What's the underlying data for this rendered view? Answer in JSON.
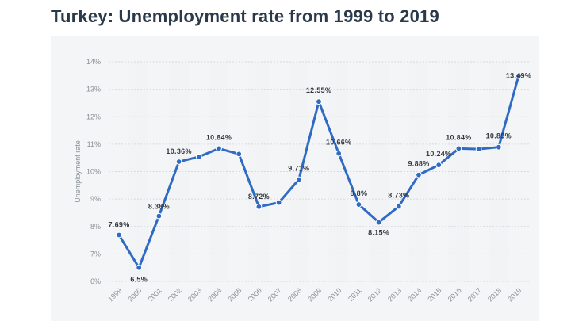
{
  "title": "Turkey: Unemployment rate from 1999 to 2019",
  "chart_data": {
    "type": "line",
    "title": "Turkey: Unemployment rate from 1999 to 2019",
    "xlabel": "",
    "ylabel": "Unemployment rate",
    "ylim": [
      6,
      14
    ],
    "yticks": [
      "6%",
      "7%",
      "8%",
      "9%",
      "10%",
      "11%",
      "12%",
      "13%",
      "14%"
    ],
    "categories": [
      "1999",
      "2000",
      "2001",
      "2002",
      "2003",
      "2004",
      "2005",
      "2006",
      "2007",
      "2008",
      "2009",
      "2010",
      "2011",
      "2012",
      "2013",
      "2014",
      "2015",
      "2016",
      "2017",
      "2018",
      "2019"
    ],
    "values": [
      7.69,
      6.5,
      8.38,
      10.36,
      10.54,
      10.84,
      10.64,
      8.72,
      8.87,
      9.71,
      12.55,
      10.66,
      8.8,
      8.15,
      8.73,
      9.88,
      10.24,
      10.84,
      10.82,
      10.89,
      13.49
    ],
    "labels": [
      "7.69%",
      "6.5%",
      "8.38%",
      "10.36%",
      "",
      "10.84%",
      "",
      "8.72%",
      "",
      "9.71%",
      "12.55%",
      "10.66%",
      "8.8%",
      "8.15%",
      "8.73%",
      "9.88%",
      "10.24%",
      "10.84%",
      "",
      "10.89%",
      "13.49%"
    ],
    "grid": true,
    "color": "#2f6bc4"
  }
}
